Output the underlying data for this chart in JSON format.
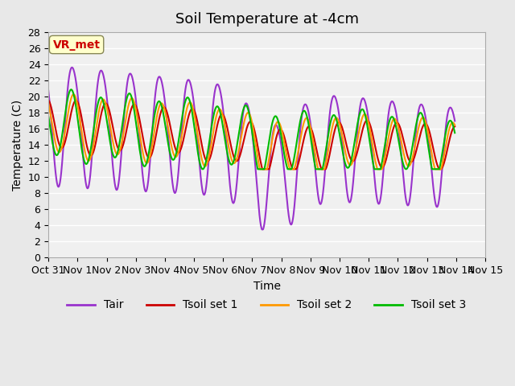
{
  "title": "Soil Temperature at -4cm",
  "xlabel": "Time",
  "ylabel": "Temperature (C)",
  "ylim": [
    0,
    28
  ],
  "xlim": [
    0,
    336
  ],
  "yticks": [
    0,
    2,
    4,
    6,
    8,
    10,
    12,
    14,
    16,
    18,
    20,
    22,
    24,
    26,
    28
  ],
  "xtick_labels": [
    "Oct 31",
    "Nov 1",
    "Nov 2",
    "Nov 3",
    "Nov 4",
    "Nov 5",
    "Nov 6",
    "Nov 7",
    "Nov 8",
    "Nov 9",
    "Nov 10",
    "Nov 11",
    "Nov 12",
    "Nov 13",
    "Nov 14",
    "Nov 15"
  ],
  "xtick_positions": [
    0,
    24,
    48,
    72,
    96,
    120,
    144,
    168,
    192,
    216,
    240,
    264,
    288,
    312,
    336,
    360
  ],
  "colors": {
    "Tair": "#9933cc",
    "Tsoil1": "#cc0000",
    "Tsoil2": "#ff9900",
    "Tsoil3": "#00bb00"
  },
  "bg_color": "#e8e8e8",
  "plot_bg": "#f0f0f0",
  "grid_color": "#ffffff",
  "annotation_text": "VR_met",
  "annotation_color": "#cc0000",
  "annotation_bg": "#ffffcc",
  "title_fontsize": 13,
  "axis_fontsize": 10,
  "tick_fontsize": 9,
  "legend_fontsize": 10,
  "linewidth": 1.5
}
